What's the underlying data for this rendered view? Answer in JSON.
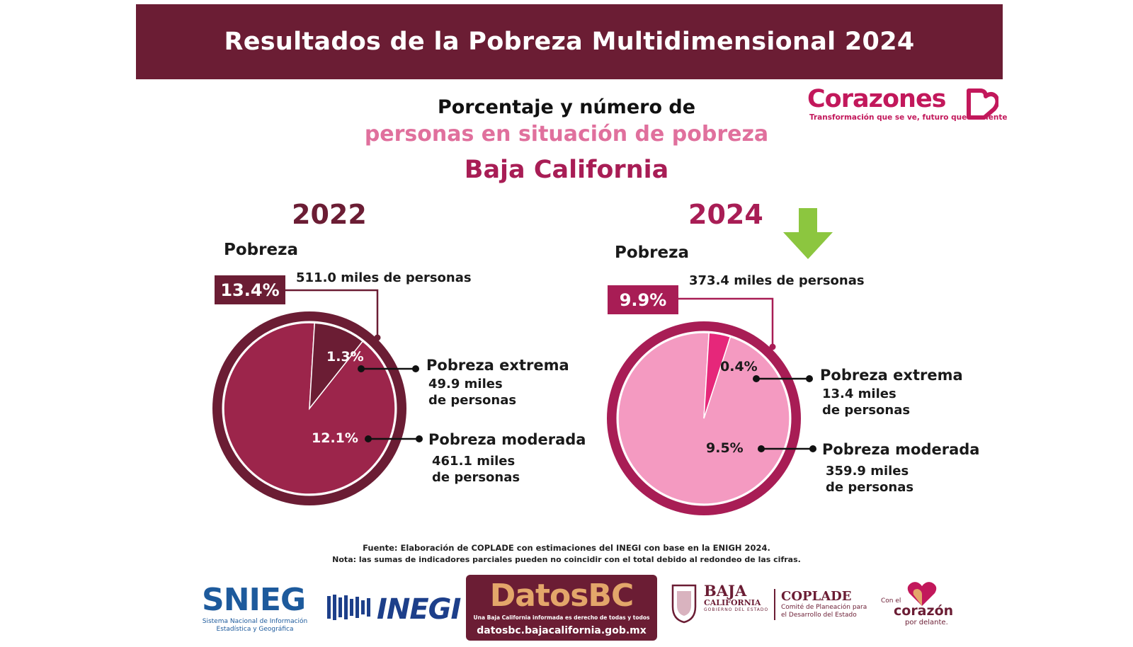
{
  "banner_title": "Resultados de la Pobreza Multidimensional 2024",
  "brand": {
    "name": "Corazones",
    "tagline": "Transformación que se ve, futuro que se siente"
  },
  "subtitle": {
    "line1": "Porcentaje y número de",
    "line2": "personas en situación de pobreza",
    "line3": "Baja California"
  },
  "colors": {
    "banner": "#6b1d34",
    "pie_2022_moderada": "#9c254b",
    "pie_2022_extrema": "#6b1d34",
    "pie_2022_ring": "#6b1d34",
    "pie_2024_moderada": "#f49ac1",
    "pie_2024_extrema": "#e6277a",
    "pie_2024_ring": "#a81d55",
    "arrow": "#8cc63f"
  },
  "chart_data": [
    {
      "type": "pie",
      "title": "2022",
      "group_label": "Pobreza",
      "total": {
        "percent_label": "13.4%",
        "people_label": "511.0 miles de personas",
        "value": 13.4
      },
      "slices": [
        {
          "name": "Pobreza extrema",
          "value": 1.3,
          "label": "1.3%",
          "people_line1": "49.9 miles",
          "people_line2": "de personas"
        },
        {
          "name": "Pobreza moderada",
          "value": 12.1,
          "label": "12.1%",
          "people_line1": "461.1 miles",
          "people_line2": "de personas"
        }
      ]
    },
    {
      "type": "pie",
      "title": "2024",
      "group_label": "Pobreza",
      "total": {
        "percent_label": "9.9%",
        "people_label": "373.4 miles de personas",
        "value": 9.9
      },
      "slices": [
        {
          "name": "Pobreza extrema",
          "value": 0.4,
          "label": "0.4%",
          "people_line1": "13.4 miles",
          "people_line2": "de personas"
        },
        {
          "name": "Pobreza moderada",
          "value": 9.5,
          "label": "9.5%",
          "people_line1": "359.9 miles",
          "people_line2": "de personas"
        }
      ]
    }
  ],
  "trend_icon": "down-arrow-icon",
  "footnotes": {
    "source": "Fuente: Elaboración de COPLADE  con estimaciones del INEGI con base en la ENIGH 2024.",
    "note": "Nota: las sumas de indicadores parciales pueden no coincidir con el total debido al redondeo de las cifras."
  },
  "logos": {
    "snieg": {
      "word": "SNIEG",
      "desc": "Sistema Nacional de Información Estadística y Geográfica"
    },
    "inegi": "INEGI",
    "datosbc": {
      "word": "DatosBC",
      "tagline": "Una Baja California informada es derecho de todas y todos",
      "url": "datosbc.bajacalifornia.gob.mx"
    },
    "bc": {
      "title": "BAJA",
      "subtitle": "CALIFORNIA",
      "gob": "GOBIERNO DEL ESTADO"
    },
    "coplade": {
      "title": "COPLADE",
      "line1": "Comité de Planeación para",
      "line2": "el Desarrollo del Estado"
    },
    "corazon": {
      "line1": "Con el",
      "line2": "corazón",
      "line3": "por delante."
    }
  }
}
